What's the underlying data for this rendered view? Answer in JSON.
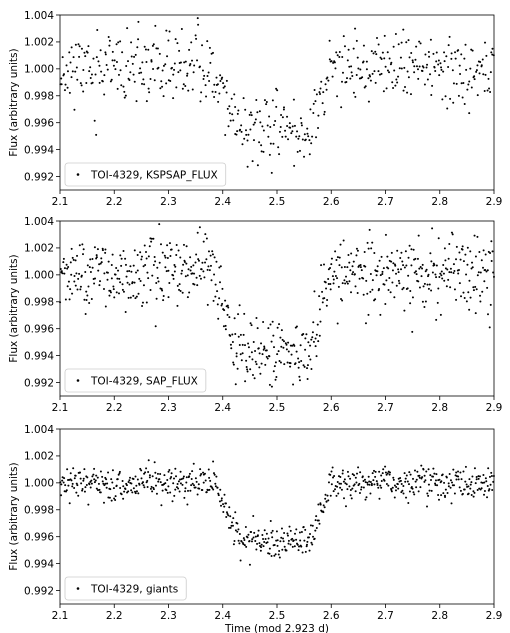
{
  "chart_data": [
    {
      "type": "scatter",
      "xlim": [
        2.1,
        2.9
      ],
      "ylim": [
        0.991,
        1.004
      ],
      "xticks": [
        "2.1",
        "2.2",
        "2.3",
        "2.4",
        "2.5",
        "2.6",
        "2.7",
        "2.8",
        "2.9"
      ],
      "yticks": [
        "0.992",
        "0.994",
        "0.996",
        "0.998",
        "1.000",
        "1.002",
        "1.004"
      ],
      "xlabel": "",
      "ylabel": "Flux (arbitrary units)",
      "legend": {
        "label": "TOI-4329, KSPSAP_FLUX",
        "placement": "lower-left"
      },
      "grid": false,
      "marker_color": "#000000",
      "transit": {
        "ingress_start": 2.385,
        "full_start": 2.43,
        "full_end": 2.56,
        "egress_end": 2.6,
        "depth": 0.0045,
        "out_of_transit": 1.0
      },
      "scatter": 0.0013,
      "n_points": 560,
      "seed": 11
    },
    {
      "type": "scatter",
      "xlim": [
        2.1,
        2.9
      ],
      "ylim": [
        0.991,
        1.004
      ],
      "xticks": [
        "2.1",
        "2.2",
        "2.3",
        "2.4",
        "2.5",
        "2.6",
        "2.7",
        "2.8",
        "2.9"
      ],
      "yticks": [
        "0.992",
        "0.994",
        "0.996",
        "0.998",
        "1.000",
        "1.002",
        "1.004"
      ],
      "xlabel": "",
      "ylabel": "Flux (arbitrary units)",
      "legend": {
        "label": "TOI-4329, SAP_FLUX",
        "placement": "lower-left"
      },
      "grid": false,
      "marker_color": "#000000",
      "transit": {
        "ingress_start": 2.385,
        "full_start": 2.43,
        "full_end": 2.56,
        "egress_end": 2.6,
        "depth": 0.0058,
        "out_of_transit": 1.0
      },
      "scatter": 0.0013,
      "n_points": 720,
      "seed": 23
    },
    {
      "type": "scatter",
      "xlim": [
        2.1,
        2.9
      ],
      "ylim": [
        0.991,
        1.004
      ],
      "xticks": [
        "2.1",
        "2.2",
        "2.3",
        "2.4",
        "2.5",
        "2.6",
        "2.7",
        "2.8",
        "2.9"
      ],
      "yticks": [
        "0.992",
        "0.994",
        "0.996",
        "0.998",
        "1.000",
        "1.002",
        "1.004"
      ],
      "xlabel": "Time (mod 2.923 d)",
      "ylabel": "Flux (arbitrary units)",
      "legend": {
        "label": "TOI-4329, giants",
        "placement": "lower-left"
      },
      "grid": false,
      "marker_color": "#000000",
      "transit": {
        "ingress_start": 2.385,
        "full_start": 2.43,
        "full_end": 2.56,
        "egress_end": 2.6,
        "depth": 0.0043,
        "out_of_transit": 1.0
      },
      "scatter": 0.0006,
      "n_points": 700,
      "seed": 37
    }
  ]
}
